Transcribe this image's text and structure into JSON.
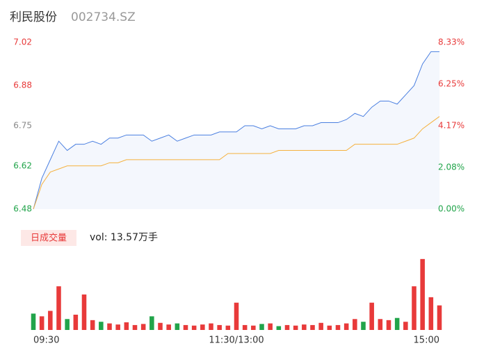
{
  "chart_data": {
    "type": "intraday",
    "title": "利民股份",
    "code": "002734.SZ",
    "badge": "日成交量",
    "volume_label": "vol: 13.57万手",
    "x": [
      0,
      5,
      10,
      15,
      20,
      25,
      30,
      35,
      40,
      45,
      50,
      55,
      60,
      65,
      70,
      75,
      80,
      85,
      90,
      95,
      100,
      105,
      110,
      115,
      120,
      125,
      130,
      135,
      140,
      145,
      150,
      155,
      160,
      165,
      170,
      175,
      180,
      185,
      190,
      195,
      200,
      205,
      210,
      215,
      220,
      225,
      230,
      235,
      240
    ],
    "xlim": [
      0,
      240
    ],
    "xticks": [
      {
        "value": 0,
        "label": "09:30"
      },
      {
        "value": 120,
        "label": "11:30/13:00"
      },
      {
        "value": 240,
        "label": "15:00"
      }
    ],
    "ylim": [
      6.48,
      7.02
    ],
    "yticks": [
      6.48,
      6.62,
      6.75,
      6.88,
      7.02
    ],
    "y2lim": [
      0,
      8.33
    ],
    "y2ticks": [
      {
        "value": 0,
        "label": "0.00%"
      },
      {
        "value": 2.08,
        "label": "2.08%"
      },
      {
        "value": 4.17,
        "label": "4.17%"
      },
      {
        "value": 6.25,
        "label": "6.25%"
      },
      {
        "value": 8.33,
        "label": "8.33%"
      }
    ],
    "base": 6.75,
    "up_color": "#e83a3a",
    "down_color": "#21a44a",
    "flat_color": "#888888",
    "series": [
      {
        "name": "price",
        "color": "#4a7fe0",
        "values": [
          6.48,
          6.58,
          6.64,
          6.7,
          6.67,
          6.69,
          6.69,
          6.7,
          6.69,
          6.71,
          6.71,
          6.72,
          6.72,
          6.72,
          6.7,
          6.71,
          6.72,
          6.7,
          6.71,
          6.72,
          6.72,
          6.72,
          6.73,
          6.73,
          6.73,
          6.75,
          6.75,
          6.74,
          6.75,
          6.74,
          6.74,
          6.74,
          6.75,
          6.75,
          6.76,
          6.76,
          6.76,
          6.77,
          6.79,
          6.78,
          6.81,
          6.83,
          6.83,
          6.82,
          6.85,
          6.88,
          6.95,
          6.99,
          6.99
        ]
      },
      {
        "name": "average",
        "color": "#f5b13d",
        "values": [
          6.48,
          6.56,
          6.6,
          6.61,
          6.62,
          6.62,
          6.62,
          6.62,
          6.62,
          6.63,
          6.63,
          6.64,
          6.64,
          6.64,
          6.64,
          6.64,
          6.64,
          6.64,
          6.64,
          6.64,
          6.64,
          6.64,
          6.64,
          6.66,
          6.66,
          6.66,
          6.66,
          6.66,
          6.66,
          6.67,
          6.67,
          6.67,
          6.67,
          6.67,
          6.67,
          6.67,
          6.67,
          6.67,
          6.69,
          6.69,
          6.69,
          6.69,
          6.69,
          6.69,
          6.7,
          6.71,
          6.74,
          6.76,
          6.78
        ]
      }
    ],
    "volume": {
      "ylim": [
        0,
        14000
      ],
      "values": [
        3000,
        2500,
        3500,
        8000,
        2000,
        2800,
        6500,
        1800,
        1500,
        1200,
        1000,
        1400,
        900,
        1100,
        2500,
        1300,
        1000,
        1200,
        900,
        800,
        1000,
        1200,
        900,
        800,
        5000,
        900,
        800,
        1100,
        1200,
        700,
        900,
        800,
        1000,
        900,
        1300,
        800,
        900,
        1200,
        2000,
        1500,
        5000,
        2000,
        1800,
        2200,
        1500,
        8000,
        13000,
        6000,
        4500
      ]
    }
  }
}
